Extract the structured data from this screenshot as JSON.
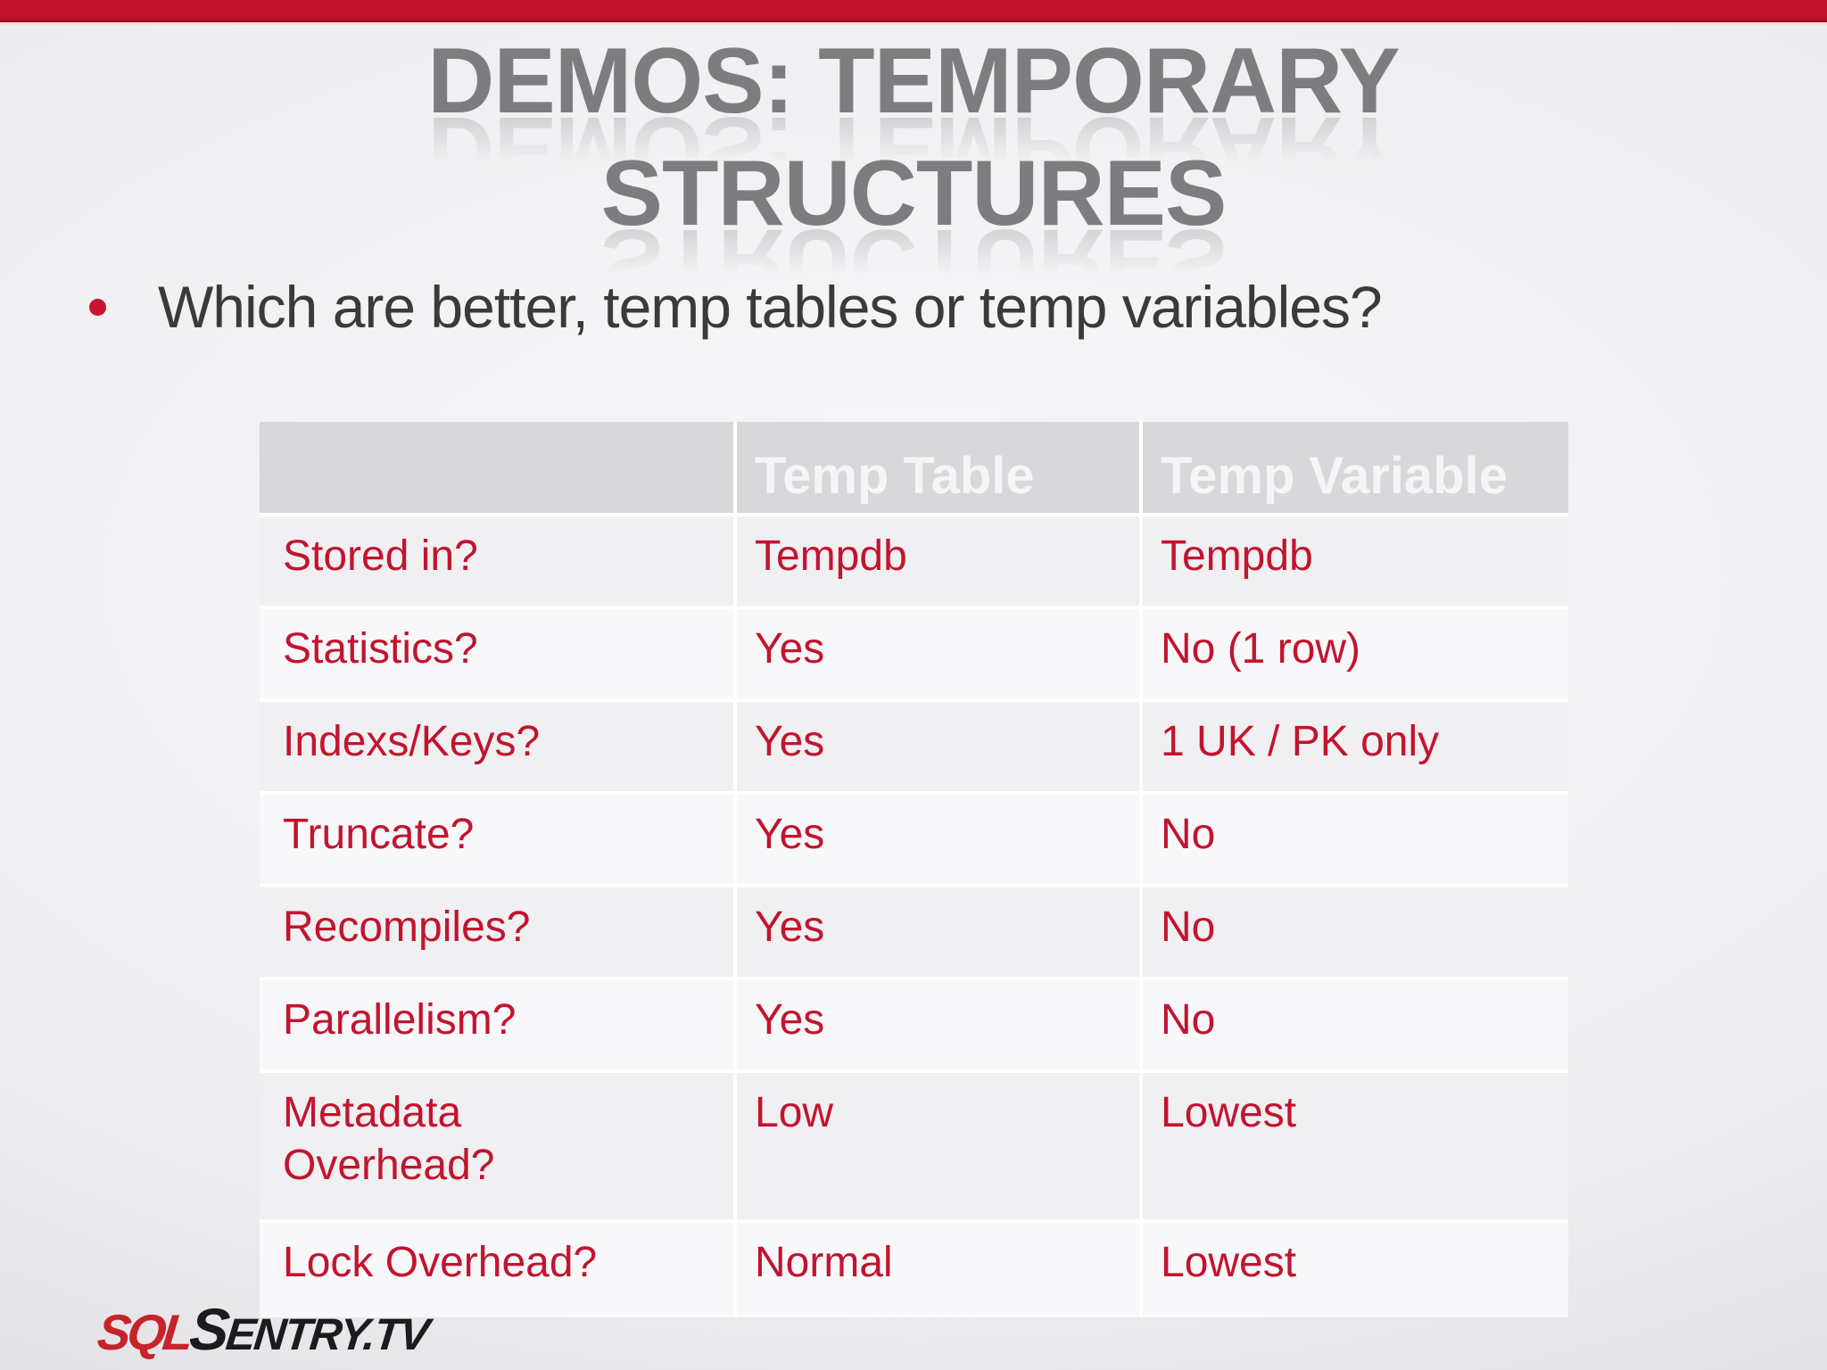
{
  "slide": {
    "title_line1": "DEMOS: TEMPORARY",
    "title_line2": "STRUCTURES",
    "bullet": "Which are better, temp tables or temp variables?"
  },
  "table": {
    "columns": {
      "col1": "",
      "col2": "Temp Table",
      "col3": "Temp Variable"
    },
    "rows": [
      {
        "label": "Stored in?",
        "temp_table": "Tempdb",
        "temp_variable": "Tempdb"
      },
      {
        "label": "Statistics?",
        "temp_table": "Yes",
        "temp_variable": "No (1 row)"
      },
      {
        "label": "Indexs/Keys?",
        "temp_table": "Yes",
        "temp_variable": "1 UK / PK only"
      },
      {
        "label": "Truncate?",
        "temp_table": "Yes",
        "temp_variable": "No"
      },
      {
        "label": "Recompiles?",
        "temp_table": "Yes",
        "temp_variable": "No"
      },
      {
        "label": "Parallelism?",
        "temp_table": "Yes",
        "temp_variable": "No"
      },
      {
        "label": "Metadata\nOverhead?",
        "temp_table": "Low",
        "temp_variable": "Lowest"
      },
      {
        "label": "Lock Overhead?",
        "temp_table": "Normal",
        "temp_variable": "Lowest"
      }
    ]
  },
  "logo": {
    "sql": "SQL",
    "sentry_initial": "S",
    "sentry_rest": "ENTRY.TV"
  },
  "colors": {
    "accent_red": "#c0112e",
    "cell_text_red": "#c2142f",
    "title_gray": "#7d7c7f",
    "header_bg": "#d8d7d9",
    "band_dark": "#f0eff1",
    "band_light": "#f8f7f9"
  }
}
